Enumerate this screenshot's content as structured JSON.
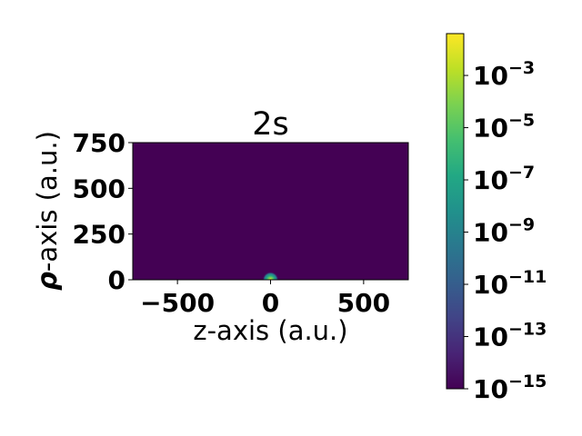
{
  "chart_data": {
    "type": "heatmap",
    "title": "2s",
    "xlabel": "z-axis (a.u.)",
    "ylabel_bold": "ρ",
    "ylabel_rest": "-axis  (a.u.)",
    "xlim": [
      -740,
      740
    ],
    "ylim": [
      0,
      750
    ],
    "x_ticks": [
      -500,
      0,
      500
    ],
    "x_tick_labels": [
      "−500",
      "0",
      "500"
    ],
    "y_ticks": [
      0,
      250,
      500,
      750
    ],
    "y_tick_labels": [
      "0",
      "250",
      "500",
      "750"
    ],
    "colorbar": {
      "scale": "log",
      "range": [
        1e-15,
        0.04
      ],
      "ticks": [
        1e-15,
        1e-13,
        1e-11,
        1e-09,
        1e-07,
        1e-05,
        0.001
      ],
      "tick_bases": [
        "10",
        "10",
        "10",
        "10",
        "10",
        "10",
        "10"
      ],
      "tick_exponents": [
        "−15",
        "−13",
        "−11",
        "−9",
        "−7",
        "−5",
        "−3"
      ],
      "colormap": "viridis"
    },
    "background_level": 1e-15,
    "blob": {
      "center_z": 0,
      "center_rho": 0,
      "radius": 20
    }
  }
}
